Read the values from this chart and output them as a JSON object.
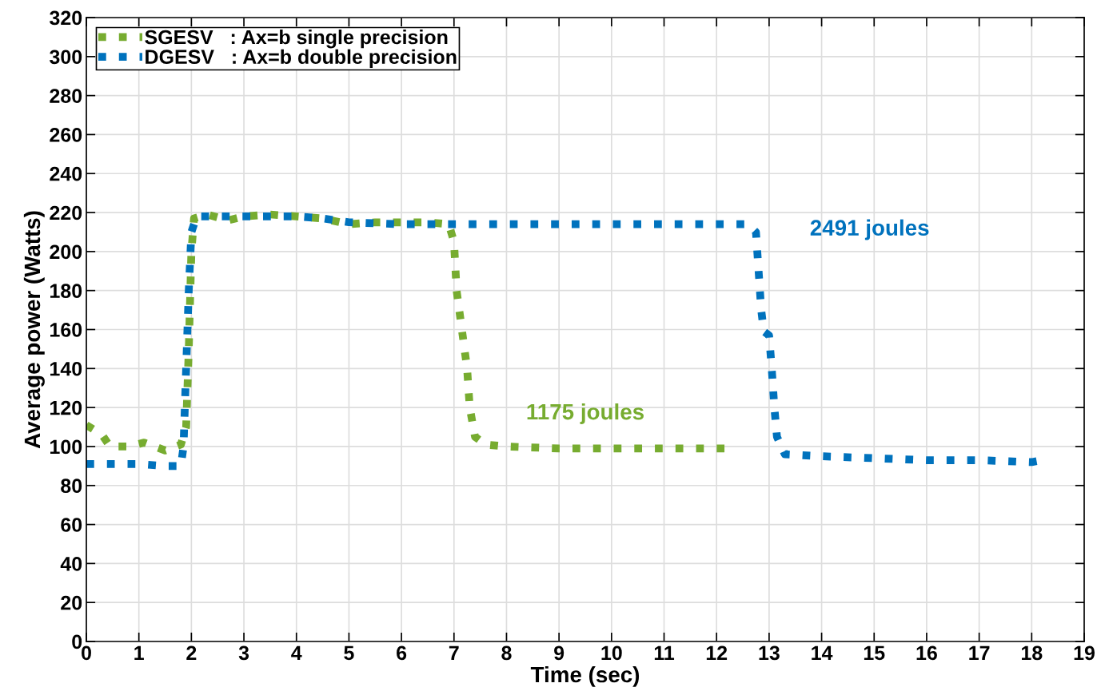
{
  "chart_data": {
    "type": "line",
    "xlabel": "Time (sec)",
    "ylabel": "Average power (Watts)",
    "xlim": [
      0,
      19
    ],
    "xticks": [
      0,
      1,
      2,
      3,
      4,
      5,
      6,
      7,
      8,
      9,
      10,
      11,
      12,
      13,
      14,
      15,
      16,
      17,
      18,
      19
    ],
    "ylim": [
      0,
      320
    ],
    "yticks": [
      0,
      20,
      40,
      60,
      80,
      100,
      120,
      140,
      160,
      180,
      200,
      220,
      240,
      260,
      280,
      300,
      320
    ],
    "grid": true,
    "legend": "top left",
    "line_style": "dotted",
    "marker": "none",
    "series": [
      {
        "name": "SGESV   : Ax=b single precision",
        "color": "#77ac30",
        "x": [
          0,
          0.3,
          0.45,
          0.8,
          1.1,
          1.5,
          1.8,
          1.9,
          1.95,
          2.0,
          2.05,
          2.3,
          2.7,
          3.0,
          3.5,
          4.0,
          4.5,
          5.0,
          5.5,
          6.0,
          6.5,
          6.9,
          7.0,
          7.05,
          7.15,
          7.25,
          7.3,
          7.4,
          7.6,
          8,
          9,
          10,
          11,
          12.2
        ],
        "values": [
          111,
          106,
          100,
          100,
          102,
          98,
          101,
          110,
          150,
          200,
          217,
          219,
          216,
          218,
          219,
          218,
          217,
          214,
          215,
          215,
          215,
          214,
          205,
          180,
          160,
          140,
          120,
          105,
          101,
          100,
          99,
          99,
          99,
          99
        ]
      },
      {
        "name": "DGESV   : Ax=b double precision",
        "color": "#0072bd",
        "x": [
          0,
          0.5,
          1,
          1.5,
          1.8,
          1.85,
          1.9,
          1.95,
          2.0,
          2.1,
          3,
          4,
          4.5,
          5,
          6,
          7,
          8,
          9,
          10,
          11,
          12,
          12.6,
          12.75,
          12.8,
          12.85,
          12.9,
          13.0,
          13.05,
          13.1,
          13.15,
          13.3,
          14,
          15,
          16,
          17,
          18,
          18.2
        ],
        "values": [
          91,
          91,
          91,
          90,
          90,
          100,
          140,
          180,
          210,
          218,
          218,
          218,
          217,
          215,
          214,
          214,
          214,
          214,
          214,
          214,
          214,
          214,
          210,
          190,
          170,
          159,
          157,
          140,
          120,
          105,
          96,
          95,
          94,
          93,
          93,
          92,
          93
        ]
      }
    ],
    "annotations": [
      "1175 joules",
      "2491 joules"
    ]
  }
}
